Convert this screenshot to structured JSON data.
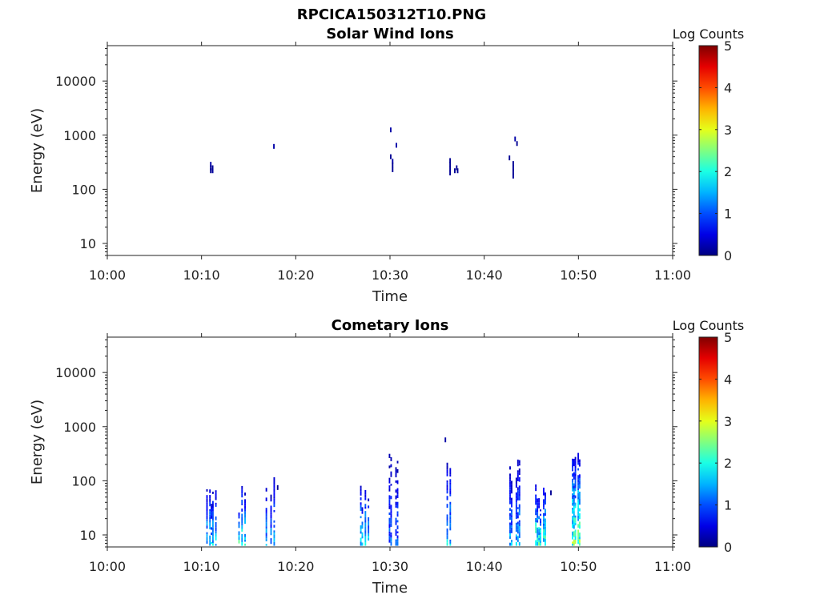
{
  "figure": {
    "title": "RPCICA150312T10.PNG"
  },
  "chart_data": [
    {
      "type": "heatmap",
      "title": "Solar Wind Ions",
      "xlabel": "Time",
      "ylabel": "Energy (eV)",
      "x_ticks": [
        "10:00",
        "10:10",
        "10:20",
        "10:30",
        "10:40",
        "10:50",
        "11:00"
      ],
      "x_range_minutes": [
        0,
        60
      ],
      "y_scale": "log",
      "y_ticks": [
        "10",
        "100",
        "1000",
        "10000"
      ],
      "y_range": [
        6,
        45000
      ],
      "colorbar": {
        "label": "Log Counts",
        "range": [
          0,
          5
        ],
        "ticks": [
          "0",
          "1",
          "2",
          "3",
          "4",
          "5"
        ],
        "colormap": "jet"
      },
      "points": [
        [
          10.9,
          290,
          0.2
        ],
        [
          10.9,
          250,
          0.1
        ],
        [
          10.9,
          220,
          0.1
        ],
        [
          11.1,
          220,
          0.15
        ],
        [
          11.1,
          250,
          0.1
        ],
        [
          17.6,
          620,
          0.2
        ],
        [
          30.0,
          1250,
          0.2
        ],
        [
          30.0,
          400,
          0.1
        ],
        [
          30.2,
          330,
          0.2
        ],
        [
          30.2,
          280,
          0.1
        ],
        [
          30.2,
          230,
          0.1
        ],
        [
          30.6,
          650,
          0.2
        ],
        [
          36.3,
          340,
          0.1
        ],
        [
          36.3,
          290,
          0.1
        ],
        [
          36.3,
          240,
          0.1
        ],
        [
          36.3,
          200,
          0.1
        ],
        [
          36.8,
          220,
          0.1
        ],
        [
          37.0,
          250,
          0.1
        ],
        [
          37.1,
          220,
          0.1
        ],
        [
          42.6,
          380,
          0.1
        ],
        [
          43.0,
          300,
          0.1
        ],
        [
          43.0,
          250,
          0.1
        ],
        [
          43.0,
          210,
          0.1
        ],
        [
          43.0,
          175,
          0.1
        ],
        [
          43.2,
          850,
          0.2
        ],
        [
          43.4,
          700,
          0.1
        ]
      ]
    },
    {
      "type": "heatmap",
      "title": "Cometary Ions",
      "xlabel": "Time",
      "ylabel": "Energy (eV)",
      "x_ticks": [
        "10:00",
        "10:10",
        "10:20",
        "10:30",
        "10:40",
        "10:50",
        "11:00"
      ],
      "x_range_minutes": [
        0,
        60
      ],
      "y_scale": "log",
      "y_ticks": [
        "10",
        "100",
        "1000",
        "10000"
      ],
      "y_range": [
        6,
        45000
      ],
      "colorbar": {
        "label": "Log Counts",
        "range": [
          0,
          5
        ],
        "ticks": [
          "0",
          "1",
          "2",
          "3",
          "4",
          "5"
        ],
        "colormap": "jet"
      },
      "bursts": [
        {
          "t0": 10.5,
          "t1": 11.6,
          "top": 100,
          "intensity": 0.9
        },
        {
          "t0": 13.9,
          "t1": 14.7,
          "top": 80,
          "intensity": 1.1
        },
        {
          "t0": 16.8,
          "t1": 17.8,
          "top": 150,
          "intensity": 0.8
        },
        {
          "t0": 26.5,
          "t1": 27.8,
          "top": 90,
          "intensity": 1.0
        },
        {
          "t0": 29.7,
          "t1": 30.9,
          "top": 360,
          "intensity": 0.6
        },
        {
          "t0": 36.0,
          "t1": 36.8,
          "top": 250,
          "intensity": 0.9
        },
        {
          "t0": 42.5,
          "t1": 44.0,
          "top": 240,
          "intensity": 0.8
        },
        {
          "t0": 45.4,
          "t1": 46.9,
          "top": 90,
          "intensity": 1.2
        },
        {
          "t0": 49.3,
          "t1": 50.2,
          "top": 450,
          "intensity": 1.3
        }
      ],
      "points": [
        [
          35.8,
          570,
          0.2
        ],
        [
          18.0,
          75,
          0.1
        ],
        [
          47.0,
          60,
          0.1
        ]
      ]
    }
  ]
}
